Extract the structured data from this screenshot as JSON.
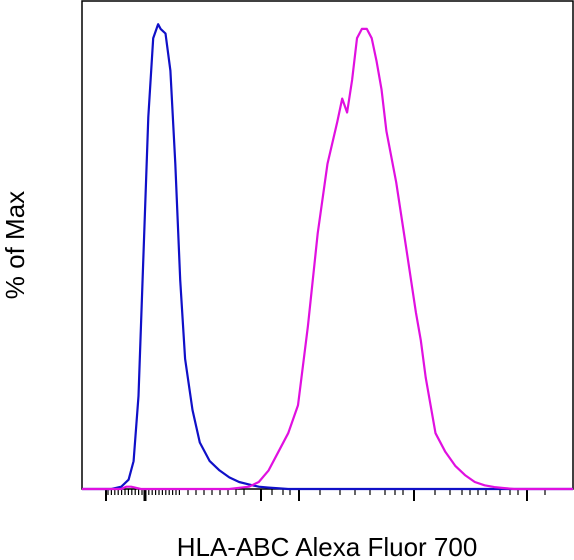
{
  "chart_data": {
    "type": "line",
    "title": "",
    "xlabel": "HLA-ABC Alexa Fluor 700",
    "ylabel": "% of Max",
    "xscale": "log",
    "xlim": [
      0.0,
      1.0
    ],
    "ylim": [
      0,
      105
    ],
    "grid": false,
    "legend": "none",
    "series": [
      {
        "color": "#1010c8",
        "x": [
          0.0,
          0.06,
          0.08,
          0.095,
          0.105,
          0.115,
          0.125,
          0.135,
          0.145,
          0.155,
          0.16,
          0.17,
          0.18,
          0.19,
          0.2,
          0.21,
          0.225,
          0.24,
          0.26,
          0.28,
          0.3,
          0.32,
          0.34,
          0.36,
          0.38,
          0.42,
          0.5,
          1.0
        ],
        "y": [
          0,
          0,
          0.5,
          2,
          6,
          20,
          50,
          80,
          97,
          100,
          99,
          98,
          90,
          70,
          45,
          28,
          17,
          10,
          6,
          4,
          2.5,
          1.5,
          1,
          0.5,
          0.3,
          0,
          0,
          0
        ]
      },
      {
        "color": "#e010e0",
        "x": [
          0.0,
          0.08,
          0.09,
          0.1,
          0.12,
          0.14,
          0.3,
          0.34,
          0.36,
          0.38,
          0.4,
          0.42,
          0.44,
          0.46,
          0.48,
          0.5,
          0.52,
          0.53,
          0.54,
          0.55,
          0.56,
          0.57,
          0.58,
          0.59,
          0.6,
          0.61,
          0.62,
          0.64,
          0.66,
          0.68,
          0.69,
          0.7,
          0.71,
          0.72,
          0.74,
          0.76,
          0.78,
          0.8,
          0.82,
          0.84,
          0.86,
          0.88,
          0.9,
          0.94,
          1.0
        ],
        "y": [
          0,
          0,
          0.5,
          0.5,
          0,
          0,
          0,
          0.5,
          1.5,
          4,
          8,
          12,
          18,
          35,
          55,
          70,
          79,
          84,
          81,
          88,
          97,
          99,
          99,
          97,
          92,
          86,
          77,
          66,
          52,
          38,
          32,
          24,
          18,
          12,
          8,
          5,
          3,
          1.5,
          0.8,
          0.4,
          0.2,
          0,
          0,
          0,
          0
        ]
      }
    ]
  }
}
